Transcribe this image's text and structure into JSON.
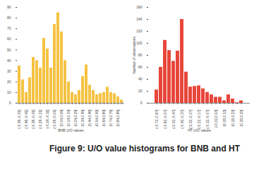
{
  "chart_data": [
    {
      "type": "bar",
      "x_label": "BNB U/O values",
      "categories": [
        "(-0.56,-0.51]",
        null,
        "(-0.46,-0.41]",
        null,
        "(-0.36,-0.31]",
        null,
        "(-0.26,-0.21]",
        null,
        "(-0.16,-0.11]",
        null,
        "(-0.06,-0.01]",
        null,
        "(0.04,0.09]",
        null,
        "(0.14,0.19]",
        null,
        "(0.24,0.29]",
        null,
        "(0.34,0.39]",
        null,
        "(0.44,0.49]",
        null,
        "(0.54,0.59]",
        null,
        "(0.64,0.69]",
        null,
        "(0.74,0.79]",
        null,
        "(0.84,0.89]",
        null
      ],
      "values": [
        35,
        22,
        10,
        24,
        43,
        40,
        33,
        61,
        51,
        33,
        74,
        85,
        67,
        40,
        20,
        10,
        8,
        12,
        25,
        36,
        17,
        12,
        8,
        9,
        10,
        15,
        10,
        9,
        6,
        3
      ],
      "color": "#f5c242",
      "ylim": [
        0,
        90
      ],
      "yticks": [
        0,
        10,
        20,
        30,
        40,
        50,
        60,
        70,
        80,
        90
      ],
      "grid": false
    },
    {
      "type": "bar",
      "x_label": "HT U/O values",
      "y_label": "Number of observations",
      "categories": [
        "(-0.72,-0.67]",
        null,
        "(-0.62,-0.57]",
        null,
        "(-0.52,-0.47]",
        null,
        "(-0.42,-0.37]",
        null,
        "(-0.32,-0.27]",
        null,
        "(-0.22,-0.17]",
        null,
        "(-0.12,-0.07]",
        null,
        "(-0.02,0.03]",
        null,
        "(0.08,0.13]",
        null,
        "(0.18,0.23]",
        null,
        "(0.28,0.33]"
      ],
      "values": [
        22,
        60,
        105,
        88,
        70,
        87,
        140,
        52,
        27,
        28,
        29,
        24,
        18,
        14,
        10,
        10,
        4,
        14,
        7,
        1,
        4
      ],
      "color": "#e8463a",
      "ylim": [
        0,
        160
      ],
      "yticks": [
        0,
        20,
        40,
        60,
        80,
        100,
        120,
        140,
        160
      ],
      "grid": false
    }
  ],
  "caption": "Figure 9: U/O value histograms for BNB and HT"
}
